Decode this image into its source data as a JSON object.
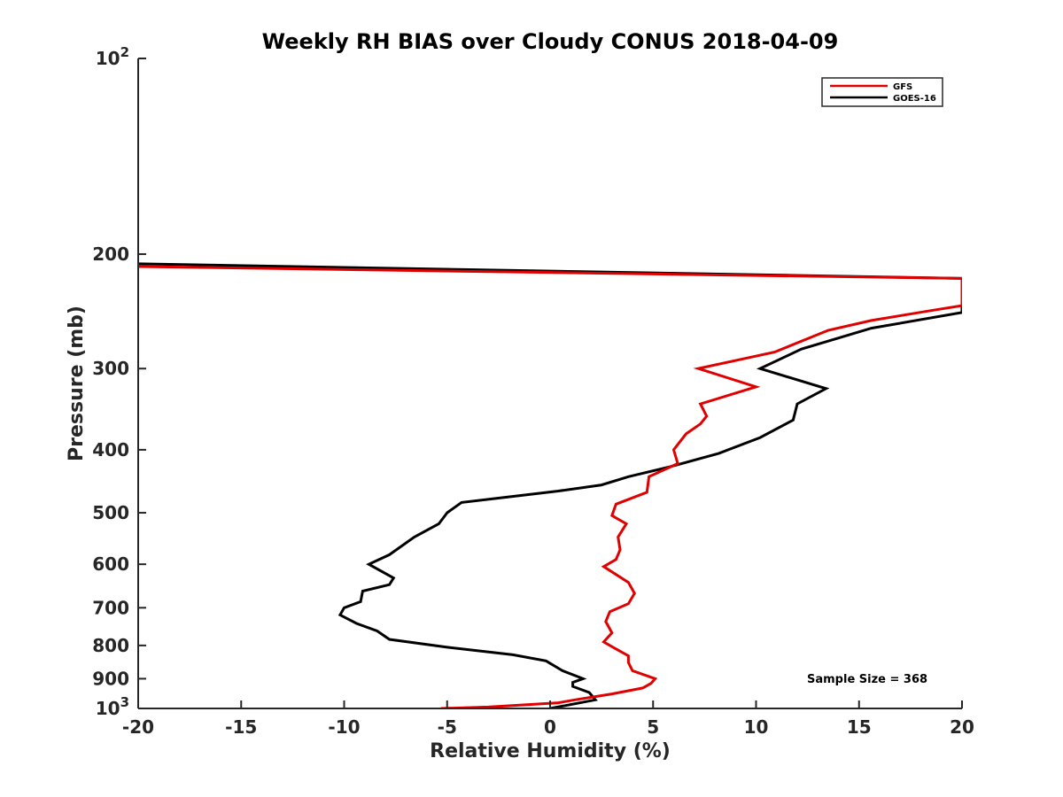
{
  "chart_data": {
    "type": "line",
    "title": "Weekly RH BIAS over Cloudy CONUS 2018-04-09",
    "xlabel": "Relative Humidity (%)",
    "ylabel": "Pressure (mb)",
    "xlim": [
      -20,
      20
    ],
    "ylim": [
      1000,
      100
    ],
    "yscale": "log",
    "y_reversed": true,
    "grid": false,
    "legend_position": "top-right",
    "x_ticks": [
      -20,
      -15,
      -10,
      -5,
      0,
      5,
      10,
      15,
      20
    ],
    "x_tick_labels": [
      "-20",
      "-15",
      "-10",
      "-5",
      "0",
      "5",
      "10",
      "15",
      "20"
    ],
    "y_ticks": [
      100,
      200,
      300,
      400,
      500,
      600,
      700,
      800,
      900,
      1000
    ],
    "y_tick_labels": [
      {
        "base": "10",
        "exp": "2"
      },
      {
        "base": "200"
      },
      {
        "base": "300"
      },
      {
        "base": "400"
      },
      {
        "base": "500"
      },
      {
        "base": "600"
      },
      {
        "base": "700"
      },
      {
        "base": "800"
      },
      {
        "base": "900"
      },
      {
        "base": "10",
        "exp": "3"
      }
    ],
    "series": [
      {
        "name": "GFS",
        "color": "#e00000",
        "points": [
          [
            -20,
            209
          ],
          [
            20,
            218
          ],
          [
            20,
            240
          ],
          [
            18.6,
            244
          ],
          [
            15.6,
            253
          ],
          [
            13.5,
            262
          ],
          [
            10.9,
            283
          ],
          [
            7.2,
            300
          ],
          [
            10.0,
            320
          ],
          [
            7.3,
            340
          ],
          [
            7.6,
            355
          ],
          [
            7.3,
            365
          ],
          [
            6.6,
            378
          ],
          [
            6.0,
            400
          ],
          [
            6.2,
            420
          ],
          [
            4.8,
            440
          ],
          [
            4.7,
            465
          ],
          [
            3.2,
            485
          ],
          [
            3.0,
            505
          ],
          [
            3.7,
            520
          ],
          [
            3.3,
            545
          ],
          [
            3.4,
            570
          ],
          [
            3.2,
            590
          ],
          [
            2.6,
            605
          ],
          [
            3.8,
            640
          ],
          [
            4.1,
            665
          ],
          [
            3.8,
            690
          ],
          [
            2.9,
            710
          ],
          [
            2.7,
            735
          ],
          [
            3.0,
            765
          ],
          [
            2.6,
            790
          ],
          [
            3.2,
            810
          ],
          [
            3.8,
            830
          ],
          [
            3.8,
            850
          ],
          [
            4.0,
            875
          ],
          [
            5.1,
            900
          ],
          [
            4.9,
            915
          ],
          [
            4.5,
            930
          ],
          [
            3.0,
            950
          ],
          [
            1.2,
            970
          ],
          [
            0.4,
            980
          ],
          [
            -3.0,
            995
          ],
          [
            -5.3,
            1000
          ]
        ]
      },
      {
        "name": "GOES-16",
        "color": "#000000",
        "points": [
          [
            -20,
            207
          ],
          [
            20,
            218
          ],
          [
            20,
            246
          ],
          [
            15.6,
            260
          ],
          [
            12.2,
            280
          ],
          [
            10.2,
            300
          ],
          [
            13.4,
            322
          ],
          [
            12.0,
            340
          ],
          [
            11.8,
            360
          ],
          [
            10.2,
            383
          ],
          [
            8.2,
            405
          ],
          [
            5.8,
            425
          ],
          [
            3.8,
            440
          ],
          [
            2.5,
            453
          ],
          [
            0.4,
            463
          ],
          [
            -2.6,
            475
          ],
          [
            -4.3,
            482
          ],
          [
            -5.0,
            500
          ],
          [
            -5.4,
            520
          ],
          [
            -6.6,
            545
          ],
          [
            -7.8,
            580
          ],
          [
            -8.8,
            600
          ],
          [
            -7.6,
            630
          ],
          [
            -7.8,
            645
          ],
          [
            -9.1,
            660
          ],
          [
            -9.2,
            685
          ],
          [
            -10.0,
            700
          ],
          [
            -10.2,
            718
          ],
          [
            -9.4,
            740
          ],
          [
            -8.4,
            760
          ],
          [
            -7.8,
            783
          ],
          [
            -5.0,
            805
          ],
          [
            -1.8,
            827
          ],
          [
            -0.2,
            845
          ],
          [
            0.6,
            875
          ],
          [
            1.6,
            900
          ],
          [
            1.1,
            912
          ],
          [
            1.1,
            925
          ],
          [
            1.9,
            945
          ],
          [
            2.2,
            970
          ],
          [
            0.0,
            1000
          ]
        ]
      }
    ],
    "annotation": "Sample Size = 368"
  }
}
